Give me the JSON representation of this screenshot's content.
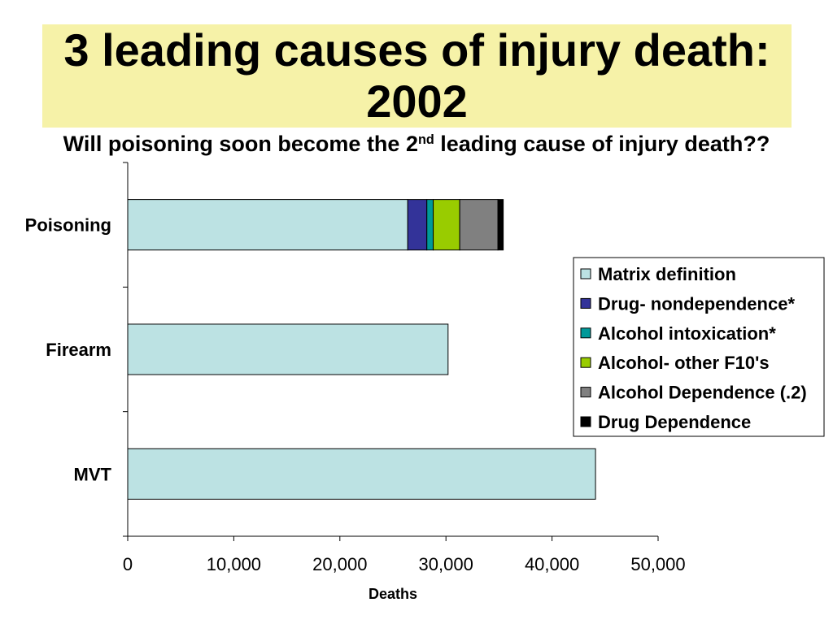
{
  "theme": {
    "title_background": "#F6F2A8"
  },
  "chart_data": {
    "type": "bar",
    "orientation": "horizontal",
    "stacked": true,
    "title": "3 leading causes of injury death: 2002",
    "subtitle": {
      "before": "Will poisoning soon become the 2",
      "superscript": "nd",
      "after": " leading cause of injury death??"
    },
    "categories": [
      "Poisoning",
      "Firearm",
      "MVT"
    ],
    "series": [
      {
        "name": "Matrix definition",
        "color": "#BCE2E3",
        "values": [
          26400,
          30200,
          44100
        ]
      },
      {
        "name": "Drug- nondependence*",
        "color": "#333399",
        "values": [
          1800,
          0,
          0
        ]
      },
      {
        "name": "Alcohol intoxication*",
        "color": "#009999",
        "values": [
          600,
          0,
          0
        ]
      },
      {
        "name": "Alcohol- other F10's",
        "color": "#99CC00",
        "values": [
          2500,
          0,
          0
        ]
      },
      {
        "name": "Alcohol Dependence (.2)",
        "color": "#808080",
        "values": [
          3600,
          0,
          0
        ]
      },
      {
        "name": "Drug Dependence",
        "color": "#000000",
        "values": [
          500,
          0,
          0
        ]
      }
    ],
    "xlabel": "Deaths",
    "xlim": [
      0,
      50000
    ],
    "xticks": [
      0,
      10000,
      20000,
      30000,
      40000,
      50000
    ],
    "xtick_labels": [
      "0",
      "10,000",
      "20,000",
      "30,000",
      "40,000",
      "50,000"
    ],
    "legend": "right",
    "grid": false
  }
}
